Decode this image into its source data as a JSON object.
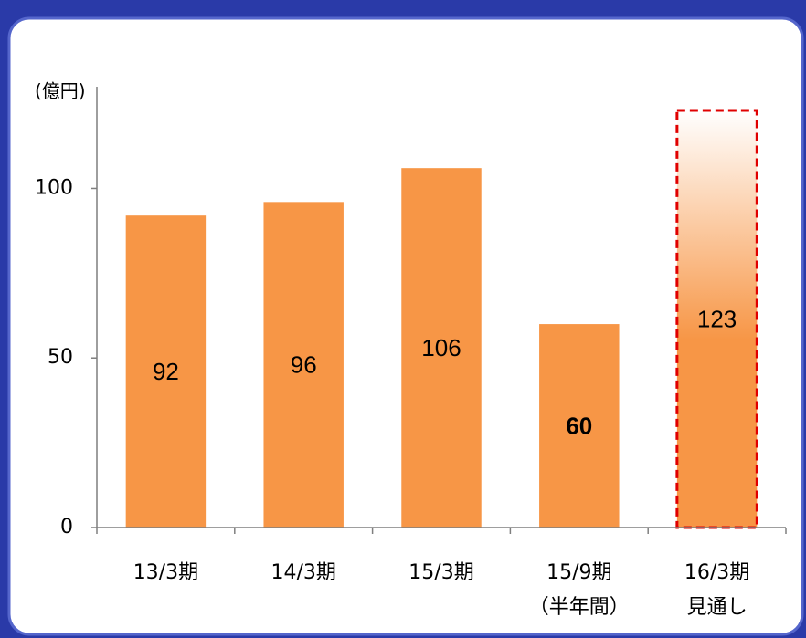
{
  "chart_data": {
    "type": "bar",
    "y_axis_label": "(億円)",
    "categories": [
      [
        "13/3期"
      ],
      [
        "14/3期"
      ],
      [
        "15/3期"
      ],
      [
        "15/9期",
        "（半年間）"
      ],
      [
        "16/3期",
        "見通し"
      ]
    ],
    "values": [
      92,
      96,
      106,
      60,
      123
    ],
    "color": "#f79646",
    "ylim": [
      0,
      130
    ],
    "yticks": [
      0,
      50,
      100
    ],
    "grid": false
  }
}
